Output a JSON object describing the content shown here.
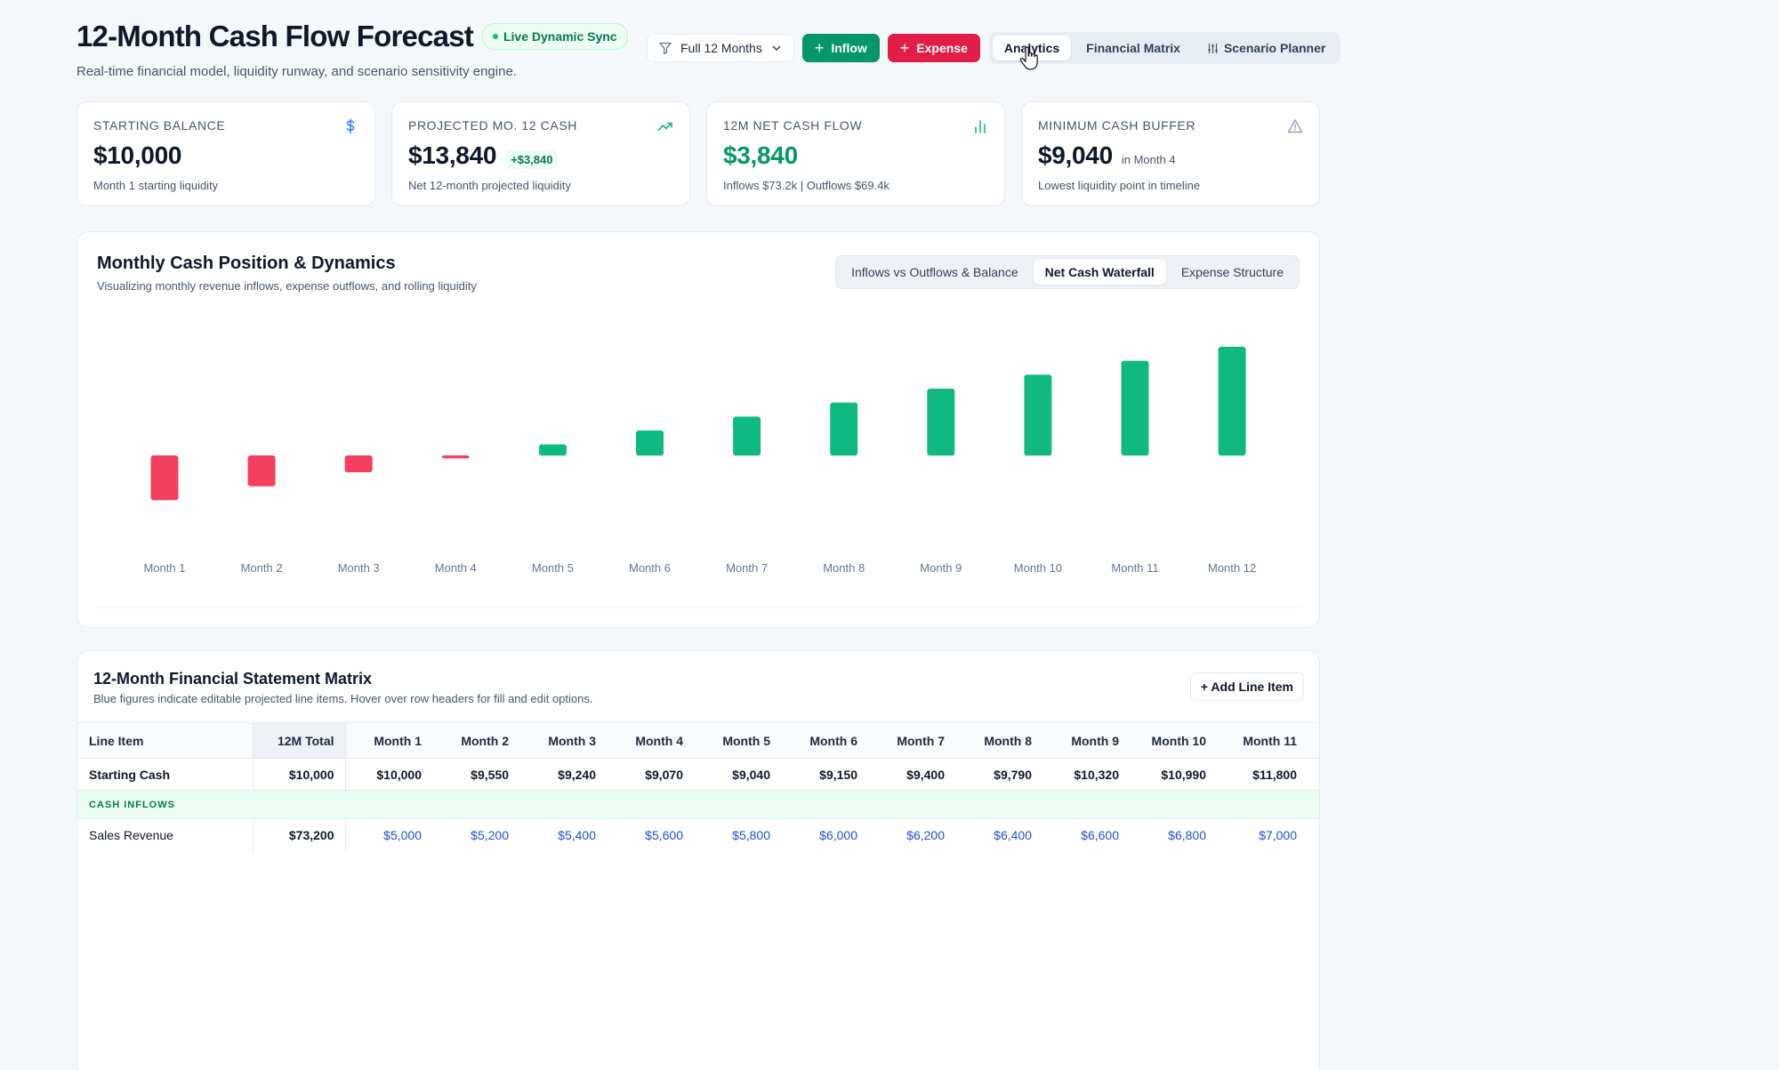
{
  "header": {
    "title": "12-Month Cash Flow Forecast",
    "badge": "Live Dynamic Sync",
    "subtitle": "Real-time financial model, liquidity runway, and scenario sensitivity engine."
  },
  "toolbar": {
    "period_select": "Full 12 Months",
    "inflow_label": "Inflow",
    "expense_label": "Expense",
    "view_tabs": [
      {
        "label": "Analytics",
        "active": true
      },
      {
        "label": "Financial Matrix",
        "active": false
      },
      {
        "label": "Scenario Planner",
        "active": false
      }
    ]
  },
  "kpis": [
    {
      "label": "STARTING BALANCE",
      "value": "$10,000",
      "note": "Month 1 starting liquidity",
      "icon": "dollar-icon"
    },
    {
      "label": "PROJECTED MO. 12 CASH",
      "value": "$13,840",
      "delta": "+$3,840",
      "note": "Net 12-month projected liquidity",
      "icon": "trending-up-icon"
    },
    {
      "label": "12M NET CASH FLOW",
      "value": "$3,840",
      "note": "Inflows $73.2k | Outflows $69.4k",
      "icon": "bar-chart-icon"
    },
    {
      "label": "MINIMUM CASH BUFFER",
      "value": "$9,040",
      "qualifier": "in Month 4",
      "note": "Lowest liquidity point in timeline",
      "icon": "warning-icon"
    }
  ],
  "chart_card": {
    "title": "Monthly Cash Position & Dynamics",
    "subtitle": "Visualizing monthly revenue inflows, expense outflows, and rolling liquidity",
    "tabs": [
      {
        "label": "Inflows vs Outflows & Balance",
        "active": false
      },
      {
        "label": "Net Cash Waterfall",
        "active": true
      },
      {
        "label": "Expense Structure",
        "active": false
      }
    ]
  },
  "chart_data": {
    "type": "bar",
    "categories": [
      "Month 1",
      "Month 2",
      "Month 3",
      "Month 4",
      "Month 5",
      "Month 6",
      "Month 7",
      "Month 8",
      "Month 9",
      "Month 10",
      "Month 11",
      "Month 12"
    ],
    "values": [
      -450,
      -310,
      -170,
      -30,
      110,
      250,
      390,
      530,
      670,
      810,
      950,
      1090
    ],
    "colors": {
      "negative": "#f43f5e",
      "positive": "#10b981"
    }
  },
  "matrix": {
    "title": "12-Month Financial Statement Matrix",
    "subtitle": "Blue figures indicate editable projected line items. Hover over row headers for fill and edit options.",
    "add_button": "+ Add Line Item",
    "columns": [
      "Line Item",
      "12M Total",
      "Month 1",
      "Month 2",
      "Month 3",
      "Month 4",
      "Month 5",
      "Month 6",
      "Month 7",
      "Month 8",
      "Month 9",
      "Month 10",
      "Month 11"
    ],
    "starting_cash": [
      "Starting Cash",
      "$10,000",
      "$10,000",
      "$9,550",
      "$9,240",
      "$9,070",
      "$9,040",
      "$9,150",
      "$9,400",
      "$9,790",
      "$10,320",
      "$10,990",
      "$11,800"
    ],
    "section_inflows": "CASH INFLOWS",
    "sales_revenue": [
      "Sales Revenue",
      "$73,200",
      "$5,000",
      "$5,200",
      "$5,400",
      "$5,600",
      "$5,800",
      "$6,000",
      "$6,200",
      "$6,400",
      "$6,600",
      "$6,800",
      "$7,000"
    ]
  }
}
